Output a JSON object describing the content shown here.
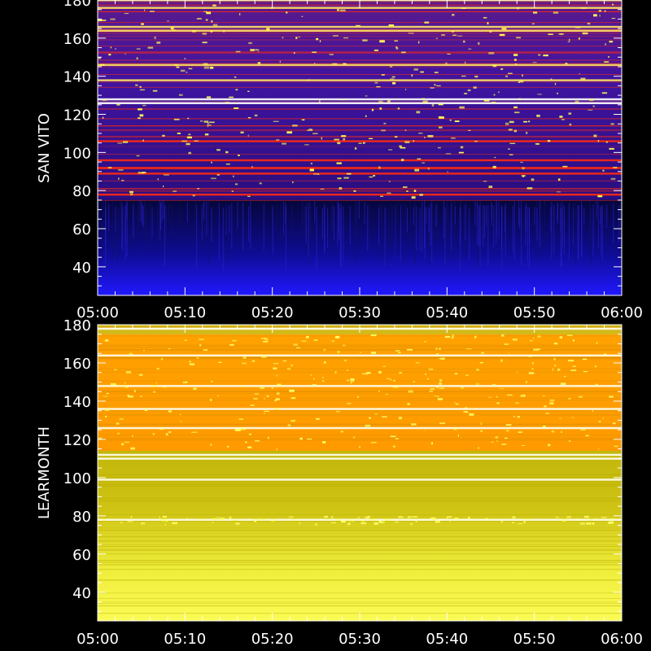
{
  "chart_data": [
    {
      "type": "heatmap",
      "station": "SAN VITO",
      "ylabel": "SAN VITO",
      "xlabel": "",
      "x_ticks": [
        "05:00",
        "05:10",
        "05:20",
        "05:30",
        "05:40",
        "05:50",
        "06:00"
      ],
      "xlim": [
        "05:00",
        "06:00"
      ],
      "y_ticks": [
        40,
        60,
        80,
        100,
        120,
        140,
        160,
        180
      ],
      "ylim": [
        25,
        180
      ],
      "colors": {
        "low_band": "#1c10d8",
        "low_band_deep": "#0a0a55",
        "high_band": "#3f14a0",
        "interference": "#ff2a10",
        "hot": "#ffe060",
        "saturated": "#ffff55"
      },
      "strong_lines_mhz": [
        180,
        176,
        166,
        164,
        146,
        138,
        128,
        126,
        106,
        96,
        92,
        89,
        78
      ],
      "band_edge_mhz": 75
    },
    {
      "type": "heatmap",
      "station": "LEARMONTH",
      "ylabel": "LEARMONTH",
      "xlabel": "",
      "x_ticks": [
        "05:00",
        "05:10",
        "05:20",
        "05:30",
        "05:40",
        "05:50",
        "06:00"
      ],
      "xlim": [
        "05:00",
        "06:00"
      ],
      "y_ticks": [
        40,
        60,
        80,
        100,
        120,
        140,
        160,
        180
      ],
      "ylim": [
        25,
        180
      ],
      "colors": {
        "high_band": "#ffa200",
        "mid_band": "#c8bc12",
        "low_band": "#f8f850",
        "saturated": "#ffff66",
        "white_line": "#fffff0"
      },
      "strong_lines_mhz": [
        178,
        164,
        148,
        136,
        126,
        112,
        110,
        99,
        78
      ],
      "band_edge_mhz": 114
    }
  ]
}
